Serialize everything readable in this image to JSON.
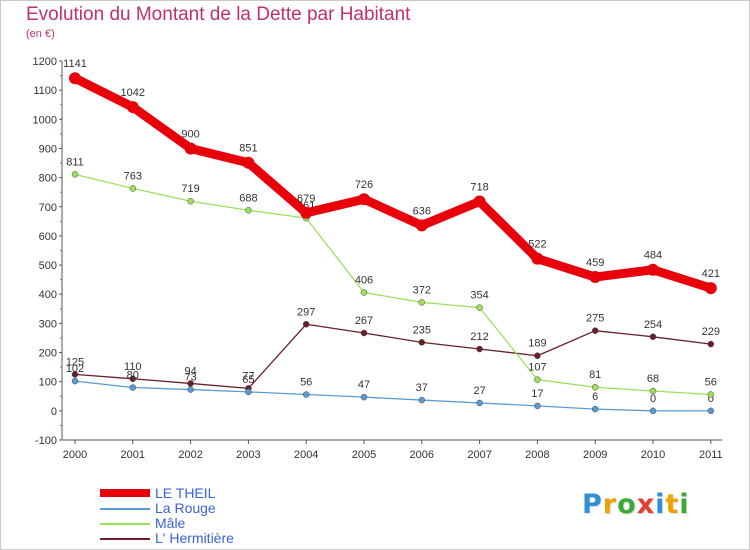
{
  "title": "Evolution du Montant de la Dette par Habitant",
  "subtitle": "(en €)",
  "chart_data": {
    "type": "line",
    "categories": [
      "2000",
      "2001",
      "2002",
      "2003",
      "2004",
      "2005",
      "2006",
      "2007",
      "2008",
      "2009",
      "2010",
      "2011"
    ],
    "ylim": [
      -100,
      1200
    ],
    "yticks": [
      -100,
      0,
      100,
      200,
      300,
      400,
      500,
      600,
      700,
      800,
      900,
      1000,
      1100,
      1200
    ],
    "grid": false,
    "legend_position": "bottom-left",
    "series": [
      {
        "name": "LE THEIL",
        "color": "#e8000b",
        "values": [
          1141,
          1042,
          900,
          851,
          679,
          726,
          636,
          718,
          522,
          459,
          484,
          421
        ]
      },
      {
        "name": "La Rouge",
        "color": "#5b9bd5",
        "values": [
          102,
          80,
          73,
          65,
          56,
          47,
          37,
          27,
          17,
          6,
          0,
          0
        ]
      },
      {
        "name": "Mâle",
        "color": "#9be15c",
        "values": [
          811,
          763,
          719,
          688,
          661,
          406,
          372,
          354,
          107,
          81,
          68,
          56
        ]
      },
      {
        "name": "L' Hermitière",
        "color": "#6b1f2a",
        "values": [
          125,
          110,
          94,
          77,
          297,
          267,
          235,
          212,
          189,
          275,
          254,
          229
        ]
      }
    ]
  },
  "logo": {
    "letters": [
      "P",
      "r",
      "o",
      "x",
      "i",
      "t",
      "i"
    ],
    "colors": [
      "#2f8fd8",
      "#f0a000",
      "#3aaa35",
      "#e23e2e",
      "#2f8fd8",
      "#f0a000",
      "#3aaa35"
    ]
  }
}
